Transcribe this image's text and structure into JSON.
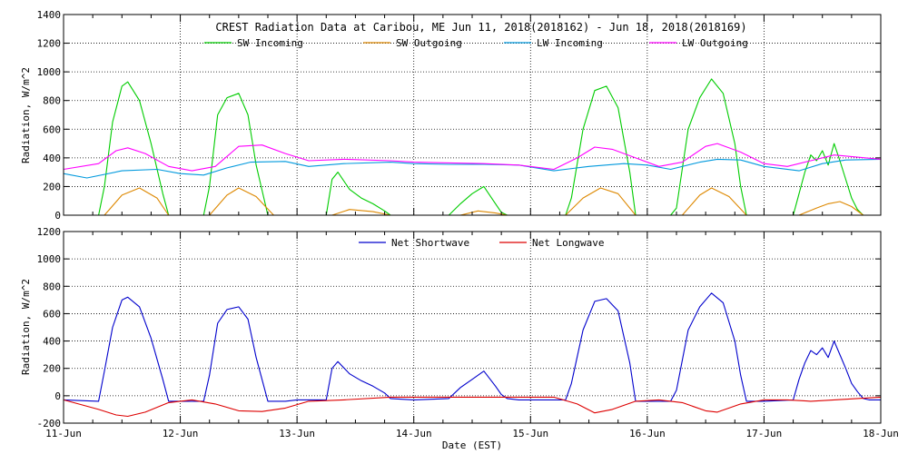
{
  "chart_data": [
    {
      "type": "line",
      "title": "CREST Radiation Data at Caribou, ME   Jun 11, 2018(2018162) - Jun 18, 2018(2018169)",
      "ylabel": "Radiation, W/m^2",
      "ylim": [
        0,
        1400
      ],
      "yticks": [
        0,
        200,
        400,
        600,
        800,
        1000,
        1200,
        1400
      ],
      "xlim": [
        0,
        7
      ],
      "grid": true,
      "legend": "top",
      "series": [
        {
          "name": "SW Incoming",
          "color": "#00cc00",
          "x": [
            0,
            0.3,
            0.35,
            0.42,
            0.5,
            0.55,
            0.65,
            0.75,
            0.85,
            0.9,
            1.0,
            1.2,
            1.25,
            1.32,
            1.4,
            1.5,
            1.58,
            1.65,
            1.75,
            1.83,
            1.9,
            2.0,
            2.25,
            2.3,
            2.35,
            2.45,
            2.55,
            2.65,
            2.75,
            2.8,
            3.0,
            3.3,
            3.4,
            3.5,
            3.6,
            3.7,
            3.75,
            3.8,
            3.9,
            4.3,
            4.35,
            4.45,
            4.55,
            4.65,
            4.75,
            4.85,
            4.9,
            5.0,
            5.2,
            5.25,
            5.35,
            5.45,
            5.55,
            5.65,
            5.75,
            5.8,
            5.85,
            5.9,
            6.0,
            6.25,
            6.3,
            6.35,
            6.4,
            6.45,
            6.5,
            6.55,
            6.6,
            6.65,
            6.7,
            6.75,
            6.8,
            6.85,
            6.9,
            7.0
          ],
          "values": [
            0,
            0,
            200,
            650,
            900,
            930,
            800,
            500,
            150,
            0,
            0,
            0,
            200,
            700,
            820,
            850,
            700,
            350,
            0,
            0,
            0,
            0,
            0,
            250,
            300,
            180,
            120,
            80,
            30,
            0,
            0,
            0,
            80,
            150,
            200,
            80,
            20,
            0,
            0,
            0,
            120,
            600,
            870,
            900,
            750,
            300,
            0,
            0,
            0,
            50,
            600,
            820,
            950,
            850,
            500,
            200,
            0,
            0,
            0,
            0,
            150,
            300,
            420,
            380,
            450,
            350,
            500,
            380,
            250,
            120,
            40,
            0,
            0,
            0
          ]
        },
        {
          "name": "SW Outgoing",
          "color": "#dd8800",
          "x": [
            0,
            0.35,
            0.5,
            0.65,
            0.8,
            0.9,
            1.0,
            1.25,
            1.4,
            1.5,
            1.65,
            1.8,
            2.0,
            2.3,
            2.45,
            2.65,
            2.8,
            3.0,
            3.4,
            3.55,
            3.7,
            3.8,
            4.0,
            4.3,
            4.45,
            4.6,
            4.75,
            4.9,
            5.0,
            5.3,
            5.45,
            5.55,
            5.7,
            5.85,
            6.0,
            6.3,
            6.45,
            6.55,
            6.65,
            6.75,
            6.85,
            7.0
          ],
          "values": [
            0,
            0,
            140,
            190,
            120,
            0,
            0,
            0,
            140,
            190,
            130,
            0,
            0,
            0,
            40,
            25,
            0,
            0,
            0,
            30,
            15,
            0,
            0,
            0,
            120,
            190,
            150,
            0,
            0,
            0,
            140,
            190,
            130,
            0,
            0,
            0,
            50,
            80,
            95,
            60,
            0,
            0
          ]
        },
        {
          "name": "LW Incoming",
          "color": "#0099dd",
          "x": [
            0,
            0.2,
            0.5,
            0.8,
            1.0,
            1.2,
            1.4,
            1.6,
            1.9,
            2.1,
            2.4,
            2.8,
            3.0,
            3.3,
            3.6,
            3.9,
            4.2,
            4.5,
            4.8,
            5.0,
            5.2,
            5.45,
            5.6,
            5.8,
            6.0,
            6.3,
            6.5,
            6.7,
            7.0
          ],
          "values": [
            290,
            260,
            310,
            320,
            290,
            280,
            330,
            370,
            375,
            340,
            360,
            370,
            360,
            355,
            355,
            350,
            310,
            340,
            360,
            350,
            320,
            370,
            390,
            385,
            340,
            310,
            360,
            385,
            390
          ]
        },
        {
          "name": "LW Outgoing",
          "color": "#ff00ff",
          "x": [
            0,
            0.3,
            0.45,
            0.55,
            0.7,
            0.9,
            1.1,
            1.3,
            1.5,
            1.7,
            1.9,
            2.1,
            2.4,
            2.8,
            3.0,
            3.3,
            3.6,
            3.9,
            4.2,
            4.4,
            4.55,
            4.7,
            4.9,
            5.1,
            5.3,
            5.5,
            5.6,
            5.8,
            6.0,
            6.2,
            6.4,
            6.6,
            7.0
          ],
          "values": [
            320,
            360,
            450,
            470,
            430,
            340,
            310,
            340,
            480,
            490,
            430,
            380,
            390,
            380,
            370,
            365,
            360,
            350,
            320,
            400,
            475,
            460,
            400,
            340,
            370,
            480,
            500,
            440,
            360,
            340,
            380,
            420,
            390
          ]
        }
      ]
    },
    {
      "type": "line",
      "ylabel": "Radiation, W/m^2",
      "xlabel": "Date (EST)",
      "ylim": [
        -200,
        1200
      ],
      "yticks": [
        -200,
        0,
        200,
        400,
        600,
        800,
        1000,
        1200
      ],
      "xlim": [
        0,
        7
      ],
      "grid": true,
      "legend": "top",
      "categories": [
        "11-Jun",
        "12-Jun",
        "13-Jun",
        "14-Jun",
        "15-Jun",
        "16-Jun",
        "17-Jun",
        "18-Jun"
      ],
      "series": [
        {
          "name": "Net Shortwave",
          "color": "#0000cc",
          "x": [
            0,
            0.3,
            0.35,
            0.42,
            0.5,
            0.55,
            0.65,
            0.75,
            0.85,
            0.9,
            1.0,
            1.2,
            1.25,
            1.32,
            1.4,
            1.5,
            1.58,
            1.65,
            1.75,
            1.83,
            1.9,
            2.0,
            2.25,
            2.3,
            2.35,
            2.45,
            2.55,
            2.65,
            2.75,
            2.8,
            3.0,
            3.3,
            3.4,
            3.5,
            3.6,
            3.7,
            3.75,
            3.8,
            3.9,
            4.3,
            4.35,
            4.45,
            4.55,
            4.65,
            4.75,
            4.85,
            4.9,
            5.0,
            5.2,
            5.25,
            5.35,
            5.45,
            5.55,
            5.65,
            5.75,
            5.8,
            5.85,
            5.9,
            6.0,
            6.25,
            6.3,
            6.35,
            6.4,
            6.45,
            6.5,
            6.55,
            6.6,
            6.65,
            6.7,
            6.75,
            6.8,
            6.85,
            6.9,
            7.0
          ],
          "values": [
            -30,
            -40,
            180,
            500,
            700,
            720,
            650,
            420,
            120,
            -40,
            -40,
            -40,
            150,
            530,
            630,
            650,
            560,
            280,
            -40,
            -40,
            -40,
            -30,
            -30,
            200,
            250,
            160,
            110,
            70,
            20,
            -20,
            -30,
            -20,
            60,
            120,
            180,
            70,
            10,
            -20,
            -30,
            -30,
            90,
            480,
            690,
            710,
            620,
            240,
            -40,
            -40,
            -40,
            40,
            480,
            650,
            750,
            680,
            400,
            150,
            -40,
            -40,
            -40,
            -30,
            120,
            240,
            330,
            300,
            350,
            280,
            400,
            300,
            200,
            90,
            30,
            -20,
            -30,
            -30
          ]
        },
        {
          "name": "Net Longwave",
          "color": "#dd0000",
          "x": [
            0,
            0.3,
            0.45,
            0.55,
            0.7,
            0.9,
            1.1,
            1.3,
            1.5,
            1.7,
            1.9,
            2.1,
            2.4,
            2.8,
            3.0,
            3.3,
            3.6,
            3.9,
            4.2,
            4.4,
            4.55,
            4.7,
            4.9,
            5.1,
            5.3,
            5.5,
            5.6,
            5.8,
            6.0,
            6.2,
            6.4,
            6.6,
            7.0
          ],
          "values": [
            -30,
            -100,
            -140,
            -150,
            -120,
            -50,
            -30,
            -60,
            -110,
            -115,
            -90,
            -40,
            -30,
            -10,
            -10,
            -10,
            -10,
            -10,
            -10,
            -60,
            -125,
            -100,
            -40,
            -30,
            -50,
            -110,
            -120,
            -60,
            -30,
            -30,
            -40,
            -30,
            -10
          ]
        }
      ]
    }
  ]
}
